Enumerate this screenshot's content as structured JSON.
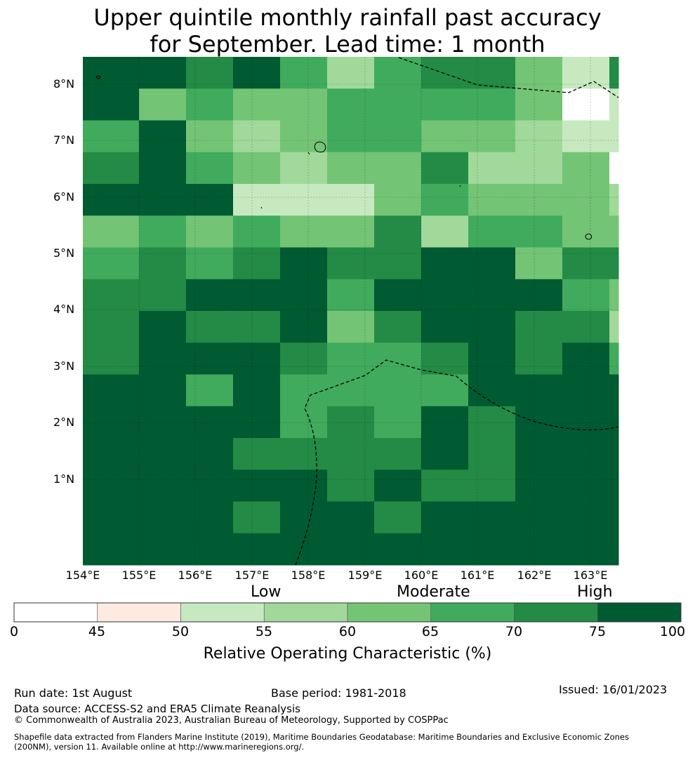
{
  "title_line1": "Upper quintile monthly rainfall past accuracy",
  "title_line2": "for September. Lead time: 1 month",
  "lat_labels": [
    "8°N",
    "7°N",
    "6°N",
    "5°N",
    "4°N",
    "3°N",
    "2°N",
    "1°N"
  ],
  "lon_labels": [
    "154°E",
    "155°E",
    "156°E",
    "157°E",
    "158°E",
    "159°E",
    "160°E",
    "161°E",
    "162°E",
    "163°E"
  ],
  "categories": {
    "low": "Low",
    "moderate": "Moderate",
    "high": "High"
  },
  "colorbar": {
    "ticks": [
      "0",
      "45",
      "50",
      "55",
      "60",
      "65",
      "70",
      "75",
      "100"
    ],
    "title": "Relative Operating Characteristic (%)",
    "bins": [
      {
        "from": 0,
        "to": 45,
        "color": "#ffffff"
      },
      {
        "from": 45,
        "to": 50,
        "color": "#feeae0"
      },
      {
        "from": 50,
        "to": 55,
        "color": "#c7e9c0"
      },
      {
        "from": 55,
        "to": 60,
        "color": "#a1d99b"
      },
      {
        "from": 60,
        "to": 65,
        "color": "#74c476"
      },
      {
        "from": 65,
        "to": 70,
        "color": "#41ab5d"
      },
      {
        "from": 70,
        "to": 75,
        "color": "#238b45"
      },
      {
        "from": 75,
        "to": 100,
        "color": "#005a32"
      }
    ]
  },
  "grid": {
    "levels": {
      "0": "#ffffff",
      "2": "#c7e9c0",
      "3": "#a1d99b",
      "4": "#74c476",
      "5": "#41ab5d",
      "6": "#238b45",
      "7": "#005a32"
    },
    "rows": [
      [
        7,
        7,
        6,
        7,
        5,
        3,
        5,
        6,
        6,
        4,
        2,
        6
      ],
      [
        7,
        4,
        5,
        4,
        4,
        5,
        5,
        5,
        5,
        4,
        0,
        2
      ],
      [
        5,
        7,
        4,
        3,
        4,
        5,
        5,
        4,
        4,
        3,
        2,
        2
      ],
      [
        6,
        7,
        5,
        4,
        3,
        4,
        4,
        6,
        3,
        3,
        4,
        0
      ],
      [
        7,
        7,
        7,
        2,
        2,
        2,
        4,
        5,
        4,
        4,
        4,
        3
      ],
      [
        4,
        5,
        4,
        5,
        4,
        4,
        6,
        3,
        5,
        5,
        4,
        4
      ],
      [
        5,
        6,
        5,
        6,
        7,
        6,
        6,
        7,
        7,
        4,
        6,
        6
      ],
      [
        6,
        6,
        7,
        7,
        7,
        5,
        7,
        7,
        7,
        7,
        5,
        4
      ],
      [
        6,
        7,
        6,
        6,
        7,
        4,
        6,
        7,
        7,
        6,
        6,
        3
      ],
      [
        6,
        7,
        7,
        7,
        6,
        5,
        5,
        6,
        7,
        6,
        7,
        5
      ],
      [
        7,
        7,
        5,
        7,
        5,
        5,
        5,
        5,
        7,
        7,
        7,
        7
      ],
      [
        7,
        7,
        7,
        7,
        5,
        6,
        5,
        7,
        6,
        7,
        7,
        7
      ],
      [
        7,
        7,
        7,
        6,
        6,
        6,
        6,
        7,
        6,
        7,
        7,
        7
      ],
      [
        7,
        7,
        7,
        7,
        7,
        6,
        7,
        6,
        6,
        7,
        7,
        7
      ],
      [
        7,
        7,
        7,
        6,
        7,
        7,
        6,
        7,
        7,
        7,
        7,
        7
      ],
      [
        7,
        7,
        7,
        7,
        7,
        7,
        7,
        7,
        7,
        7,
        7,
        7
      ]
    ]
  },
  "footer": {
    "run_date": "Run date: 1st August",
    "base_period": "Base period: 1981-2018",
    "issued": "Issued: 16/01/2023",
    "data_source": "Data source: ACCESS-S2 and ERA5 Climate Reanalysis",
    "copyright": "© Commonwealth of Australia 2023, Australian Bureau of Meteorology, Supported by COSPPac",
    "shapefile_line1": "Shapefile data extracted from Flanders Marine Institute (2019), Maritime Boundaries Geodatabase: Maritime Boundaries and Exclusive Economic Zones",
    "shapefile_line2": "(200NM), version 11. Available online at http://www.marineregions.org/."
  }
}
